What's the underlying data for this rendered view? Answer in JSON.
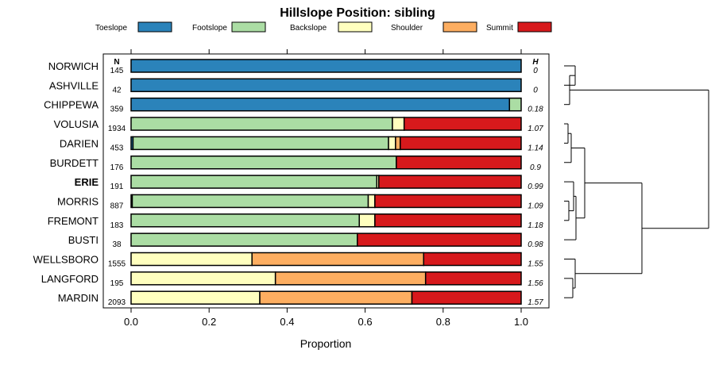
{
  "chart_data": {
    "type": "bar",
    "orientation": "horizontal",
    "stacked": true,
    "title": "Hillslope Position: sibling",
    "xlabel": "Proportion",
    "ylabel": "",
    "xlim": [
      0,
      1
    ],
    "x_ticks": [
      "0.0",
      "0.2",
      "0.4",
      "0.6",
      "0.8",
      "1.0"
    ],
    "legend_placement": "top",
    "n_header": "N",
    "h_header": "H",
    "highlight_category": "ERIE",
    "categories": [
      "NORWICH",
      "ASHVILLE",
      "CHIPPEWA",
      "VOLUSIA",
      "DARIEN",
      "BURDETT",
      "ERIE",
      "MORRIS",
      "FREMONT",
      "BUSTI",
      "WELLSBORO",
      "LANGFORD",
      "MARDIN"
    ],
    "n": [
      "145",
      "42",
      "359",
      "1934",
      "453",
      "176",
      "191",
      "887",
      "183",
      "38",
      "1555",
      "195",
      "2093"
    ],
    "h": [
      "0",
      "0",
      "0.18",
      "1.07",
      "1.14",
      "0.9",
      "0.99",
      "1.09",
      "1.18",
      "0.98",
      "1.55",
      "1.56",
      "1.57"
    ],
    "series": [
      {
        "name": "Toeslope",
        "color": "#2b83ba",
        "values": [
          1.0,
          1.0,
          0.97,
          0.0,
          0.005,
          0.0,
          0.0,
          0.003,
          0.0,
          0.0,
          0.0,
          0.0,
          0.0
        ]
      },
      {
        "name": "Footslope",
        "color": "#abdda4",
        "values": [
          0.0,
          0.0,
          0.03,
          0.67,
          0.655,
          0.68,
          0.63,
          0.605,
          0.585,
          0.58,
          0.0,
          0.0,
          0.0
        ]
      },
      {
        "name": "Backslope",
        "color": "#ffffbf",
        "values": [
          0.0,
          0.0,
          0.0,
          0.03,
          0.018,
          0.0,
          0.005,
          0.017,
          0.04,
          0.0,
          0.31,
          0.37,
          0.33
        ]
      },
      {
        "name": "Shoulder",
        "color": "#fdae61",
        "values": [
          0.0,
          0.0,
          0.0,
          0.0,
          0.012,
          0.0,
          0.0,
          0.0,
          0.0,
          0.0,
          0.44,
          0.385,
          0.39
        ]
      },
      {
        "name": "Summit",
        "color": "#d7191c",
        "values": [
          0.0,
          0.0,
          0.0,
          0.3,
          0.31,
          0.32,
          0.365,
          0.375,
          0.375,
          0.42,
          0.25,
          0.245,
          0.28
        ]
      }
    ]
  }
}
